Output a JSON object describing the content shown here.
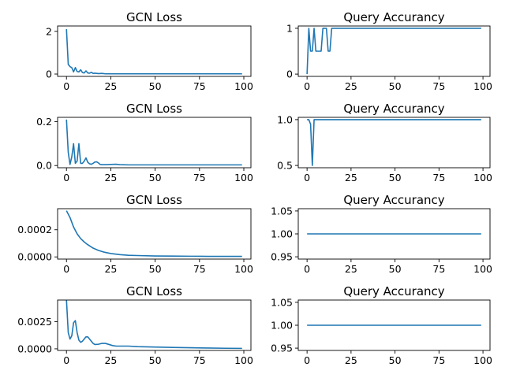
{
  "chart_data": [
    {
      "type": "line",
      "title": "GCN Loss",
      "xlim": [
        -5,
        104
      ],
      "ylim": [
        -0.11,
        2.25
      ],
      "xticks": [
        "0",
        "25",
        "50",
        "75",
        "100"
      ],
      "yticks": [
        "0",
        "2"
      ],
      "series": [
        {
          "x": [
            0,
            1,
            2,
            3,
            4,
            5,
            6,
            7,
            8,
            9,
            10,
            11,
            12,
            13,
            14,
            15,
            16,
            18,
            20,
            22,
            25,
            30,
            40,
            50,
            60,
            70,
            80,
            90,
            99
          ],
          "values": [
            2.1,
            0.45,
            0.35,
            0.3,
            0.1,
            0.3,
            0.12,
            0.1,
            0.2,
            0.07,
            0.05,
            0.15,
            0.05,
            0.04,
            0.08,
            0.03,
            0.04,
            0.02,
            0.03,
            0.01,
            0.01,
            0.01,
            0.01,
            0.01,
            0.01,
            0.01,
            0.01,
            0.01,
            0.01
          ]
        }
      ],
      "color": "#1f77b4"
    },
    {
      "type": "line",
      "title": "Query Accurancy",
      "xlim": [
        -5,
        104
      ],
      "ylim": [
        -0.05,
        1.05
      ],
      "xticks": [
        "0",
        "25",
        "50",
        "75",
        "100"
      ],
      "yticks": [
        "0",
        "1"
      ],
      "series": [
        {
          "x": [
            0,
            1,
            2,
            3,
            4,
            5,
            6,
            7,
            8,
            9,
            10,
            11,
            12,
            13,
            14,
            15,
            99
          ],
          "values": [
            0,
            1,
            0.5,
            0.5,
            1,
            0.5,
            0.5,
            0.5,
            0.5,
            1,
            1,
            1,
            0.5,
            0.5,
            1,
            1,
            1
          ]
        }
      ],
      "color": "#1f77b4"
    },
    {
      "type": "line",
      "title": "GCN Loss",
      "xlim": [
        -5,
        104
      ],
      "ylim": [
        -0.01,
        0.22
      ],
      "xticks": [
        "0",
        "25",
        "50",
        "75",
        "100"
      ],
      "yticks": [
        "0.0",
        "0.2"
      ],
      "series": [
        {
          "x": [
            0,
            1,
            2,
            3,
            4,
            5,
            6,
            7,
            8,
            9,
            10,
            11,
            12,
            13,
            14,
            15,
            16,
            17,
            18,
            19,
            20,
            22,
            25,
            28,
            30,
            35,
            40,
            50,
            60,
            70,
            80,
            90,
            99
          ],
          "values": [
            0.21,
            0.06,
            0.005,
            0.04,
            0.1,
            0.01,
            0.02,
            0.1,
            0.01,
            0.01,
            0.02,
            0.035,
            0.015,
            0.008,
            0.006,
            0.01,
            0.016,
            0.017,
            0.012,
            0.005,
            0.004,
            0.004,
            0.005,
            0.006,
            0.004,
            0.003,
            0.003,
            0.003,
            0.003,
            0.003,
            0.003,
            0.003,
            0.003
          ]
        }
      ],
      "color": "#1f77b4"
    },
    {
      "type": "line",
      "title": "Query Accurancy",
      "xlim": [
        -5,
        104
      ],
      "ylim": [
        0.475,
        1.025
      ],
      "xticks": [
        "0",
        "25",
        "50",
        "75",
        "100"
      ],
      "yticks": [
        "0.5",
        "1.0"
      ],
      "series": [
        {
          "x": [
            0,
            1,
            2,
            3,
            4,
            99
          ],
          "values": [
            1,
            1,
            0.95,
            0.5,
            1,
            1
          ]
        }
      ],
      "color": "#1f77b4"
    },
    {
      "type": "line",
      "title": "GCN Loss",
      "xlim": [
        -5,
        104
      ],
      "ylim": [
        -1.6e-05,
        0.000355
      ],
      "xticks": [
        "0",
        "25",
        "50",
        "75",
        "100"
      ],
      "yticks": [
        "0.0000",
        "0.0002"
      ],
      "series": [
        {
          "x": [
            0,
            2,
            4,
            6,
            8,
            10,
            12,
            15,
            18,
            21,
            25,
            30,
            35,
            40,
            50,
            60,
            70,
            80,
            90,
            99
          ],
          "values": [
            0.00034,
            0.00029,
            0.00022,
            0.00017,
            0.000135,
            0.00011,
            9e-05,
            6.5e-05,
            4.8e-05,
            3.6e-05,
            2.5e-05,
            1.7e-05,
            1.2e-05,
            1e-05,
            7e-06,
            6e-06,
            5e-06,
            4e-06,
            4e-06,
            4e-06
          ]
        }
      ],
      "color": "#1f77b4"
    },
    {
      "type": "line",
      "title": "Query Accurancy",
      "xlim": [
        -5,
        104
      ],
      "ylim": [
        0.945,
        1.055
      ],
      "xticks": [
        "0",
        "25",
        "50",
        "75",
        "100"
      ],
      "yticks": [
        "0.95",
        "1.00",
        "1.05"
      ],
      "series": [
        {
          "x": [
            0,
            99
          ],
          "values": [
            1,
            1
          ]
        }
      ],
      "color": "#1f77b4"
    },
    {
      "type": "line",
      "title": "GCN Loss",
      "xlim": [
        -5,
        104
      ],
      "ylim": [
        -0.00015,
        0.0045
      ],
      "xticks": [
        "0",
        "25",
        "50",
        "75",
        "100"
      ],
      "yticks": [
        "0.0000",
        "0.0025"
      ],
      "series": [
        {
          "x": [
            0,
            1,
            2,
            3,
            4,
            5,
            6,
            7,
            8,
            9,
            10,
            11,
            12,
            13,
            14,
            15,
            16,
            18,
            20,
            22,
            24,
            26,
            28,
            30,
            35,
            40,
            50,
            60,
            70,
            80,
            90,
            99
          ],
          "values": [
            0.0045,
            0.0015,
            0.0009,
            0.0012,
            0.0024,
            0.0026,
            0.0015,
            0.0008,
            0.0006,
            0.0007,
            0.0009,
            0.0011,
            0.0011,
            0.0009,
            0.0007,
            0.0005,
            0.0004,
            0.00042,
            0.0005,
            0.0005,
            0.0004,
            0.0003,
            0.00025,
            0.00025,
            0.00025,
            0.0002,
            0.00016,
            0.00013,
            0.0001,
            7e-05,
            5e-05,
            4e-05
          ]
        }
      ],
      "color": "#1f77b4"
    },
    {
      "type": "line",
      "title": "Query Accurancy",
      "xlim": [
        -5,
        104
      ],
      "ylim": [
        0.945,
        1.055
      ],
      "xticks": [
        "0",
        "25",
        "50",
        "75",
        "100"
      ],
      "yticks": [
        "0.95",
        "1.00",
        "1.05"
      ],
      "series": [
        {
          "x": [
            0,
            99
          ],
          "values": [
            1,
            1
          ]
        }
      ],
      "color": "#1f77b4"
    }
  ]
}
